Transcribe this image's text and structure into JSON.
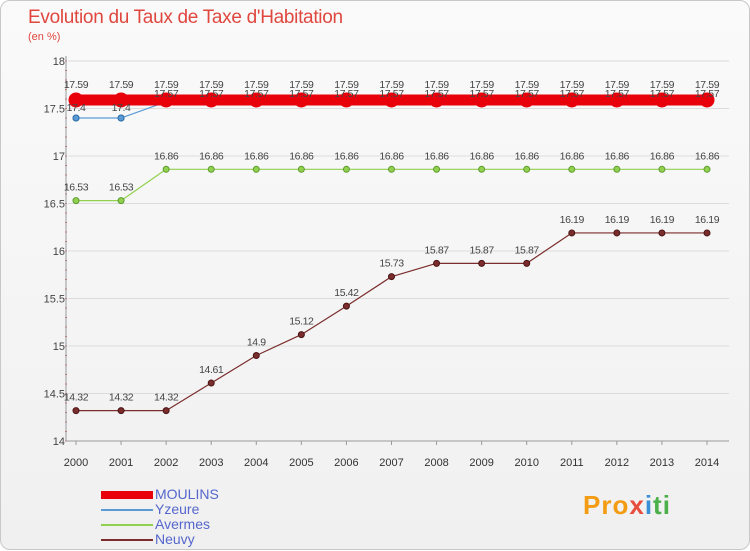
{
  "header": {
    "title": "Evolution du Taux de Taxe d'Habitation",
    "unit": "(en %)"
  },
  "chart_data": {
    "type": "line",
    "title": "Evolution du Taux de Taxe d'Habitation",
    "ylabel": "(en %)",
    "x": [
      "2000",
      "2001",
      "2002",
      "2003",
      "2004",
      "2005",
      "2006",
      "2007",
      "2008",
      "2009",
      "2010",
      "2011",
      "2012",
      "2013",
      "2014"
    ],
    "ylim": [
      14,
      18
    ],
    "yticks": [
      14,
      14.5,
      15,
      15.5,
      16,
      16.5,
      17,
      17.5,
      18
    ],
    "ytick_labels": [
      "14",
      "14.5",
      "15",
      "15.5",
      "16",
      "16.5",
      "17",
      "17.5",
      "18"
    ],
    "series": [
      {
        "name": "MOULINS",
        "color": "#e8000b",
        "values": [
          17.59,
          17.59,
          17.59,
          17.59,
          17.59,
          17.59,
          17.59,
          17.59,
          17.59,
          17.59,
          17.59,
          17.59,
          17.59,
          17.59,
          17.59
        ],
        "labels": [
          "17.59",
          "17.59",
          "17.59",
          "17.59",
          "17.59",
          "17.59",
          "17.59",
          "17.59",
          "17.59",
          "17.59",
          "17.59",
          "17.59",
          "17.59",
          "17.59",
          "17.59"
        ]
      },
      {
        "name": "Yzeure",
        "color": "#5b9bd5",
        "values": [
          17.4,
          17.4,
          17.57,
          17.57,
          17.57,
          17.57,
          17.57,
          17.57,
          17.57,
          17.57,
          17.57,
          17.57,
          17.57,
          17.57,
          17.57
        ],
        "labels": [
          "17.4",
          "17.4",
          "17.57",
          "17.57",
          "17.57",
          "17.57",
          "17.57",
          "17.57",
          "17.57",
          "17.57",
          "17.57",
          "17.57",
          "17.57",
          "17.57",
          "17.57"
        ]
      },
      {
        "name": "Avermes",
        "color": "#92d050",
        "values": [
          16.53,
          16.53,
          16.86,
          16.86,
          16.86,
          16.86,
          16.86,
          16.86,
          16.86,
          16.86,
          16.86,
          16.86,
          16.86,
          16.86,
          16.86
        ],
        "labels": [
          "16.53",
          "16.53",
          "16.86",
          "16.86",
          "16.86",
          "16.86",
          "16.86",
          "16.86",
          "16.86",
          "16.86",
          "16.86",
          "16.86",
          "16.86",
          "16.86",
          "16.86"
        ]
      },
      {
        "name": "Neuvy",
        "color": "#7b2c2c",
        "values": [
          14.32,
          14.32,
          14.32,
          14.61,
          14.9,
          15.12,
          15.42,
          15.73,
          15.87,
          15.87,
          15.87,
          16.19,
          16.19,
          16.19,
          16.19
        ],
        "labels": [
          "14.32",
          "14.32",
          "14.32",
          "14.61",
          "14.9",
          "15.12",
          "15.42",
          "15.73",
          "15.87",
          "15.87",
          "15.87",
          "16.19",
          "16.19",
          "16.19",
          "16.19"
        ]
      }
    ]
  },
  "logo": {
    "p1": "Pro",
    "p2": "x",
    "p3": "i",
    "p4": "ti"
  }
}
